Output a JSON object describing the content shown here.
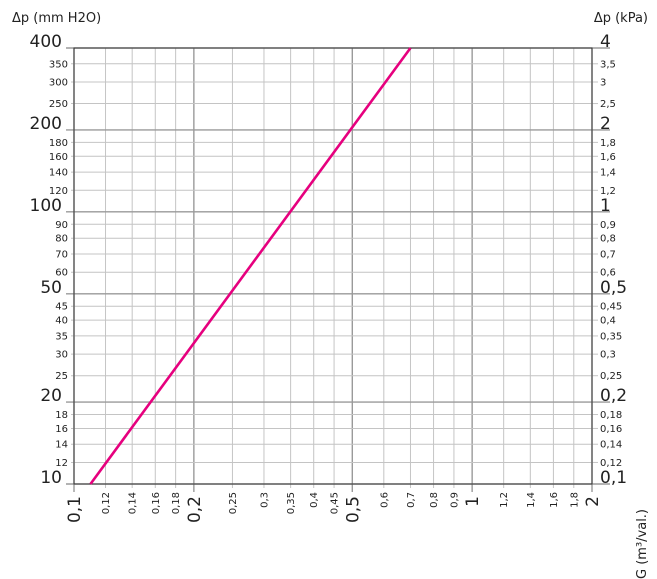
{
  "chart_data": {
    "type": "line",
    "title": "",
    "ylabel_left": "Δp (mm H2O)",
    "ylabel_right": "Δp (kPa)",
    "xlabel": "G (m³/val.)",
    "x_scale": "log",
    "y_scale": "log",
    "xlim": [
      0.1,
      2
    ],
    "ylim_left": [
      10,
      400
    ],
    "ylim_right": [
      0.1,
      4
    ],
    "grid": true,
    "legend": "none",
    "line_color": "#e6007e",
    "x_ticks": [
      {
        "value": 0.1,
        "label": "0,1",
        "major": true
      },
      {
        "value": 0.12,
        "label": "0,12",
        "major": false
      },
      {
        "value": 0.14,
        "label": "0,14",
        "major": false
      },
      {
        "value": 0.16,
        "label": "0,16",
        "major": false
      },
      {
        "value": 0.18,
        "label": "0,18",
        "major": false
      },
      {
        "value": 0.2,
        "label": "0,2",
        "major": true
      },
      {
        "value": 0.25,
        "label": "0,25",
        "major": false
      },
      {
        "value": 0.3,
        "label": "0,3",
        "major": false
      },
      {
        "value": 0.35,
        "label": "0,35",
        "major": false
      },
      {
        "value": 0.4,
        "label": "0,4",
        "major": false
      },
      {
        "value": 0.45,
        "label": "0,45",
        "major": false
      },
      {
        "value": 0.5,
        "label": "0,5",
        "major": true
      },
      {
        "value": 0.6,
        "label": "0,6",
        "major": false
      },
      {
        "value": 0.7,
        "label": "0,7",
        "major": false
      },
      {
        "value": 0.8,
        "label": "0,8",
        "major": false
      },
      {
        "value": 0.9,
        "label": "0,9",
        "major": false
      },
      {
        "value": 1,
        "label": "1",
        "major": true
      },
      {
        "value": 1.2,
        "label": "1,2",
        "major": false
      },
      {
        "value": 1.4,
        "label": "1,4",
        "major": false
      },
      {
        "value": 1.6,
        "label": "1,6",
        "major": false
      },
      {
        "value": 1.8,
        "label": "1,8",
        "major": false
      },
      {
        "value": 2,
        "label": "2",
        "major": true
      }
    ],
    "y_ticks_left": [
      {
        "value": 10,
        "label": "10",
        "major": true
      },
      {
        "value": 12,
        "label": "12",
        "major": false
      },
      {
        "value": 14,
        "label": "14",
        "major": false
      },
      {
        "value": 16,
        "label": "16",
        "major": false
      },
      {
        "value": 18,
        "label": "18",
        "major": false
      },
      {
        "value": 20,
        "label": "20",
        "major": true
      },
      {
        "value": 25,
        "label": "25",
        "major": false
      },
      {
        "value": 30,
        "label": "30",
        "major": false
      },
      {
        "value": 35,
        "label": "35",
        "major": false
      },
      {
        "value": 40,
        "label": "40",
        "major": false
      },
      {
        "value": 45,
        "label": "45",
        "major": false
      },
      {
        "value": 50,
        "label": "50",
        "major": true
      },
      {
        "value": 60,
        "label": "60",
        "major": false
      },
      {
        "value": 70,
        "label": "70",
        "major": false
      },
      {
        "value": 80,
        "label": "80",
        "major": false
      },
      {
        "value": 90,
        "label": "90",
        "major": false
      },
      {
        "value": 100,
        "label": "100",
        "major": true
      },
      {
        "value": 120,
        "label": "120",
        "major": false
      },
      {
        "value": 140,
        "label": "140",
        "major": false
      },
      {
        "value": 160,
        "label": "160",
        "major": false
      },
      {
        "value": 180,
        "label": "180",
        "major": false
      },
      {
        "value": 200,
        "label": "200",
        "major": true
      },
      {
        "value": 250,
        "label": "250",
        "major": false
      },
      {
        "value": 300,
        "label": "300",
        "major": false
      },
      {
        "value": 350,
        "label": "350",
        "major": false
      },
      {
        "value": 400,
        "label": "400",
        "major": true
      }
    ],
    "y_ticks_right": [
      {
        "value": 0.1,
        "label": "0,1",
        "major": true
      },
      {
        "value": 0.12,
        "label": "0,12",
        "major": false
      },
      {
        "value": 0.14,
        "label": "0,14",
        "major": false
      },
      {
        "value": 0.16,
        "label": "0,16",
        "major": false
      },
      {
        "value": 0.18,
        "label": "0,18",
        "major": false
      },
      {
        "value": 0.2,
        "label": "0,2",
        "major": true
      },
      {
        "value": 0.25,
        "label": "0,25",
        "major": false
      },
      {
        "value": 0.3,
        "label": "0,3",
        "major": false
      },
      {
        "value": 0.35,
        "label": "0,35",
        "major": false
      },
      {
        "value": 0.4,
        "label": "0,4",
        "major": false
      },
      {
        "value": 0.45,
        "label": "0,45",
        "major": false
      },
      {
        "value": 0.5,
        "label": "0,5",
        "major": true
      },
      {
        "value": 0.6,
        "label": "0,6",
        "major": false
      },
      {
        "value": 0.7,
        "label": "0,7",
        "major": false
      },
      {
        "value": 0.8,
        "label": "0,8",
        "major": false
      },
      {
        "value": 0.9,
        "label": "0,9",
        "major": false
      },
      {
        "value": 1,
        "label": "1",
        "major": true
      },
      {
        "value": 1.2,
        "label": "1,2",
        "major": false
      },
      {
        "value": 1.4,
        "label": "1,4",
        "major": false
      },
      {
        "value": 1.6,
        "label": "1,6",
        "major": false
      },
      {
        "value": 1.8,
        "label": "1,8",
        "major": false
      },
      {
        "value": 2,
        "label": "2",
        "major": true
      },
      {
        "value": 2.5,
        "label": "2,5",
        "major": false
      },
      {
        "value": 3,
        "label": "3",
        "major": false
      },
      {
        "value": 3.5,
        "label": "3,5",
        "major": false
      },
      {
        "value": 4,
        "label": "4",
        "major": true
      }
    ],
    "series": [
      {
        "points": [
          {
            "x": 0.11,
            "y": 10
          },
          {
            "x": 0.7,
            "y": 400
          }
        ]
      }
    ]
  }
}
